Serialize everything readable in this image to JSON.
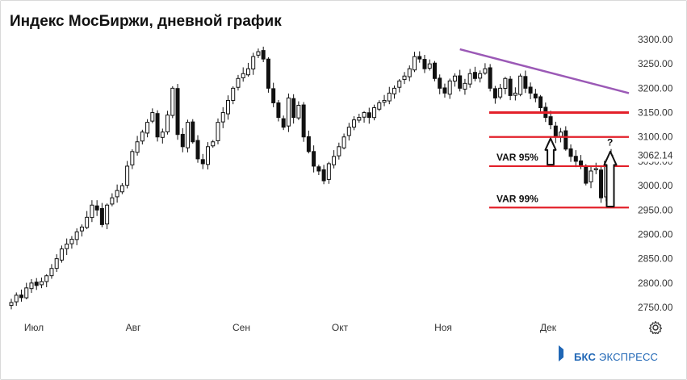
{
  "title": "Индекс МосБиржи, дневной график",
  "brand": {
    "strong": "БКС",
    "rest": "ЭКСПРЕСС"
  },
  "icons": {
    "settings": "gear-icon"
  },
  "colors": {
    "candle": "#111111",
    "support": "#e3202a",
    "trend": "#9b59b6",
    "hollow": "#ffffff"
  },
  "chart_data": {
    "type": "candlestick",
    "title": "Индекс МосБиржи, дневной график",
    "y_axis": {
      "position": "right",
      "ylim": [
        2730,
        3310
      ],
      "ticks": [
        "3300.00",
        "3250.00",
        "3200.00",
        "3150.00",
        "3100.00",
        "3050.00",
        "3000.00",
        "2950.00",
        "2900.00",
        "2850.00",
        "2800.00",
        "2750.00"
      ],
      "current_value_label": "3062.14"
    },
    "x_axis": {
      "tick_labels": [
        "Июл",
        "Авг",
        "Сен",
        "Окт",
        "Ноя",
        "Дек"
      ]
    },
    "grid": false,
    "closes": [
      2760,
      2775,
      2770,
      2790,
      2800,
      2795,
      2803,
      2815,
      2830,
      2850,
      2870,
      2880,
      2890,
      2905,
      2915,
      2935,
      2960,
      2950,
      2920,
      2960,
      2975,
      2990,
      3000,
      3040,
      3070,
      3090,
      3110,
      3130,
      3150,
      3100,
      3110,
      3145,
      3200,
      3105,
      3080,
      3130,
      3090,
      3055,
      3045,
      3080,
      3090,
      3130,
      3150,
      3175,
      3200,
      3220,
      3230,
      3240,
      3265,
      3275,
      3260,
      3200,
      3170,
      3140,
      3120,
      3180,
      3140,
      3165,
      3100,
      3070,
      3040,
      3030,
      3010,
      3045,
      3060,
      3080,
      3100,
      3120,
      3135,
      3140,
      3150,
      3140,
      3160,
      3170,
      3175,
      3190,
      3200,
      3215,
      3225,
      3240,
      3265,
      3260,
      3240,
      3250,
      3220,
      3200,
      3190,
      3215,
      3225,
      3200,
      3210,
      3230,
      3220,
      3230,
      3240,
      3200,
      3180,
      3200,
      3220,
      3185,
      3190,
      3225,
      3200,
      3190,
      3180,
      3160,
      3140,
      3125,
      3100,
      3110,
      3075,
      3060,
      3050,
      3040,
      3005,
      3030,
      3035,
      2975,
      3050,
      3062.14
    ],
    "overlays": [
      {
        "kind": "trendline",
        "from": {
          "index": 89,
          "value": 3280
        },
        "to": {
          "index": 139,
          "value": 3190
        }
      },
      {
        "kind": "level",
        "value": 3150,
        "label": ""
      },
      {
        "kind": "level",
        "value": 3100,
        "label": ""
      },
      {
        "kind": "level",
        "value": 3040,
        "label": "VAR 95%"
      },
      {
        "kind": "level",
        "value": 2955,
        "label": "VAR 99%"
      }
    ],
    "annotations": [
      "?"
    ]
  }
}
